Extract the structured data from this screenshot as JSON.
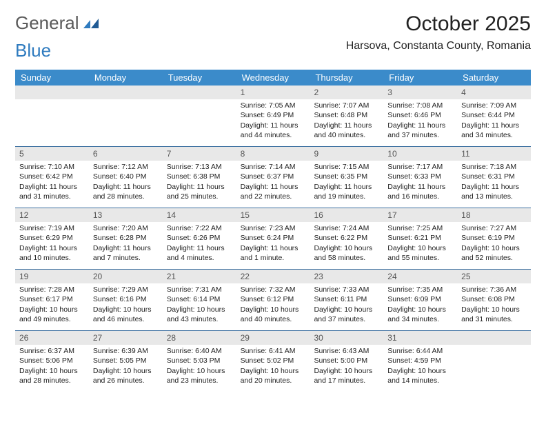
{
  "logo": {
    "text1": "General",
    "text2": "Blue"
  },
  "title": "October 2025",
  "location": "Harsova, Constanta County, Romania",
  "colors": {
    "header_bg": "#3b8bca",
    "header_text": "#ffffff",
    "daynum_bg": "#e8e8e8",
    "week_border": "#3b6fa0",
    "text": "#222222",
    "logo_gray": "#5a5a5a",
    "logo_blue": "#2f7bbf"
  },
  "day_labels": [
    "Sunday",
    "Monday",
    "Tuesday",
    "Wednesday",
    "Thursday",
    "Friday",
    "Saturday"
  ],
  "weeks": [
    [
      null,
      null,
      null,
      {
        "n": "1",
        "sr": "7:05 AM",
        "ss": "6:49 PM",
        "dl": "11 hours and 44 minutes."
      },
      {
        "n": "2",
        "sr": "7:07 AM",
        "ss": "6:48 PM",
        "dl": "11 hours and 40 minutes."
      },
      {
        "n": "3",
        "sr": "7:08 AM",
        "ss": "6:46 PM",
        "dl": "11 hours and 37 minutes."
      },
      {
        "n": "4",
        "sr": "7:09 AM",
        "ss": "6:44 PM",
        "dl": "11 hours and 34 minutes."
      }
    ],
    [
      {
        "n": "5",
        "sr": "7:10 AM",
        "ss": "6:42 PM",
        "dl": "11 hours and 31 minutes."
      },
      {
        "n": "6",
        "sr": "7:12 AM",
        "ss": "6:40 PM",
        "dl": "11 hours and 28 minutes."
      },
      {
        "n": "7",
        "sr": "7:13 AM",
        "ss": "6:38 PM",
        "dl": "11 hours and 25 minutes."
      },
      {
        "n": "8",
        "sr": "7:14 AM",
        "ss": "6:37 PM",
        "dl": "11 hours and 22 minutes."
      },
      {
        "n": "9",
        "sr": "7:15 AM",
        "ss": "6:35 PM",
        "dl": "11 hours and 19 minutes."
      },
      {
        "n": "10",
        "sr": "7:17 AM",
        "ss": "6:33 PM",
        "dl": "11 hours and 16 minutes."
      },
      {
        "n": "11",
        "sr": "7:18 AM",
        "ss": "6:31 PM",
        "dl": "11 hours and 13 minutes."
      }
    ],
    [
      {
        "n": "12",
        "sr": "7:19 AM",
        "ss": "6:29 PM",
        "dl": "11 hours and 10 minutes."
      },
      {
        "n": "13",
        "sr": "7:20 AM",
        "ss": "6:28 PM",
        "dl": "11 hours and 7 minutes."
      },
      {
        "n": "14",
        "sr": "7:22 AM",
        "ss": "6:26 PM",
        "dl": "11 hours and 4 minutes."
      },
      {
        "n": "15",
        "sr": "7:23 AM",
        "ss": "6:24 PM",
        "dl": "11 hours and 1 minute."
      },
      {
        "n": "16",
        "sr": "7:24 AM",
        "ss": "6:22 PM",
        "dl": "10 hours and 58 minutes."
      },
      {
        "n": "17",
        "sr": "7:25 AM",
        "ss": "6:21 PM",
        "dl": "10 hours and 55 minutes."
      },
      {
        "n": "18",
        "sr": "7:27 AM",
        "ss": "6:19 PM",
        "dl": "10 hours and 52 minutes."
      }
    ],
    [
      {
        "n": "19",
        "sr": "7:28 AM",
        "ss": "6:17 PM",
        "dl": "10 hours and 49 minutes."
      },
      {
        "n": "20",
        "sr": "7:29 AM",
        "ss": "6:16 PM",
        "dl": "10 hours and 46 minutes."
      },
      {
        "n": "21",
        "sr": "7:31 AM",
        "ss": "6:14 PM",
        "dl": "10 hours and 43 minutes."
      },
      {
        "n": "22",
        "sr": "7:32 AM",
        "ss": "6:12 PM",
        "dl": "10 hours and 40 minutes."
      },
      {
        "n": "23",
        "sr": "7:33 AM",
        "ss": "6:11 PM",
        "dl": "10 hours and 37 minutes."
      },
      {
        "n": "24",
        "sr": "7:35 AM",
        "ss": "6:09 PM",
        "dl": "10 hours and 34 minutes."
      },
      {
        "n": "25",
        "sr": "7:36 AM",
        "ss": "6:08 PM",
        "dl": "10 hours and 31 minutes."
      }
    ],
    [
      {
        "n": "26",
        "sr": "6:37 AM",
        "ss": "5:06 PM",
        "dl": "10 hours and 28 minutes."
      },
      {
        "n": "27",
        "sr": "6:39 AM",
        "ss": "5:05 PM",
        "dl": "10 hours and 26 minutes."
      },
      {
        "n": "28",
        "sr": "6:40 AM",
        "ss": "5:03 PM",
        "dl": "10 hours and 23 minutes."
      },
      {
        "n": "29",
        "sr": "6:41 AM",
        "ss": "5:02 PM",
        "dl": "10 hours and 20 minutes."
      },
      {
        "n": "30",
        "sr": "6:43 AM",
        "ss": "5:00 PM",
        "dl": "10 hours and 17 minutes."
      },
      {
        "n": "31",
        "sr": "6:44 AM",
        "ss": "4:59 PM",
        "dl": "10 hours and 14 minutes."
      },
      null
    ]
  ],
  "labels": {
    "sunrise": "Sunrise:",
    "sunset": "Sunset:",
    "daylight": "Daylight:"
  }
}
